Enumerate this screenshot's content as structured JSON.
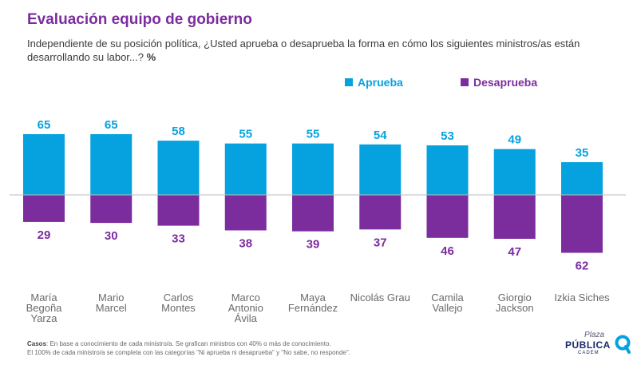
{
  "title": "Evaluación equipo de gobierno",
  "subtitle": "Independiente de su posición política, ¿Usted aprueba o desaprueba la forma en cómo los siguientes ministros/as están desarrollando su labor...?",
  "subtitle_unit": "%",
  "legend": {
    "approve": "Aprueba",
    "disapprove": "Desaprueba"
  },
  "colors": {
    "approve": "#05a2df",
    "disapprove": "#7b2d9e",
    "title": "#7b2d9e"
  },
  "footnote": {
    "label": "Casos",
    "line1": ": En base a conocimiento de cada ministro/a. Se grafican ministros con 40% o más de conocimiento.",
    "line2": "El 100% de cada ministro/a se completa con las categorías \"Ni aprueba ni desaprueba\" y \"No sabe, no responde\"."
  },
  "logo": {
    "line1": "Plaza",
    "line2": "PÚBLICA",
    "line3": "CADEM"
  },
  "chart_data": {
    "type": "bar",
    "title": "Evaluación equipo de gobierno",
    "categories": [
      "María\nBegoña\nYarza",
      "Mario\nMarcel",
      "Carlos\nMontes",
      "Marco\nAntonio\nÁvila",
      "Maya\nFernández",
      "Nicolás Grau",
      "Camila\nVallejo",
      "Giorgio\nJackson",
      "Izkia Siches"
    ],
    "series": [
      {
        "name": "Aprueba",
        "values": [
          65,
          65,
          58,
          55,
          55,
          54,
          53,
          49,
          35
        ]
      },
      {
        "name": "Desaprueba",
        "values": [
          29,
          30,
          33,
          38,
          39,
          37,
          46,
          47,
          62
        ]
      }
    ],
    "xlabel": "",
    "ylabel": "%",
    "ylim": [
      -62,
      65
    ],
    "grid": false,
    "legend_position": "top-right"
  }
}
